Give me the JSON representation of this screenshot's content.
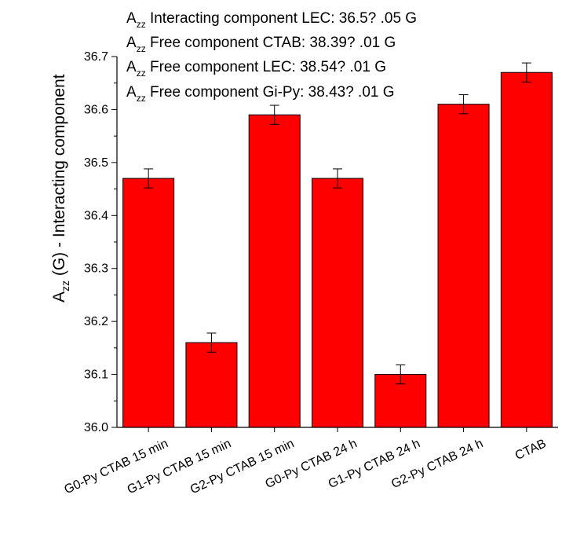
{
  "chart_data": {
    "type": "bar",
    "title": "",
    "xlabel": "",
    "ylabel": {
      "prefix": "A",
      "subscript": "zz",
      "suffix": " (G) - Interacting component"
    },
    "ylim": [
      36.0,
      36.7
    ],
    "yticks": [
      "36.0",
      "36.1",
      "36.2",
      "36.3",
      "36.4",
      "36.5",
      "36.6",
      "36.7"
    ],
    "categories": [
      "G0-Py CTAB 15 min",
      "G1-Py CTAB 15 min",
      "G2-Py CTAB 15 min",
      "G0-Py CTAB 24 h",
      "G1-Py CTAB 24 h",
      "G2-Py CTAB 24 h",
      "CTAB"
    ],
    "values": [
      36.47,
      36.16,
      36.59,
      36.47,
      36.1,
      36.61,
      36.67
    ],
    "errors": [
      0.018,
      0.018,
      0.018,
      0.018,
      0.018,
      0.018,
      0.018
    ],
    "bar_color": "#ff0000",
    "bar_edge_color": "#000000",
    "grid": false,
    "annotations": [
      {
        "prefix": "A",
        "subscript": "zz",
        "text": " Interacting component LEC: 36.5?  .05 G"
      },
      {
        "prefix": "A",
        "subscript": "zz",
        "text": " Free component CTAB: 38.39?  .01 G"
      },
      {
        "prefix": "A",
        "subscript": "zz",
        "text": " Free component LEC: 38.54?  .01 G"
      },
      {
        "prefix": "A",
        "subscript": "zz",
        "text": " Free component Gi-Py: 38.43?  .01 G"
      }
    ]
  }
}
